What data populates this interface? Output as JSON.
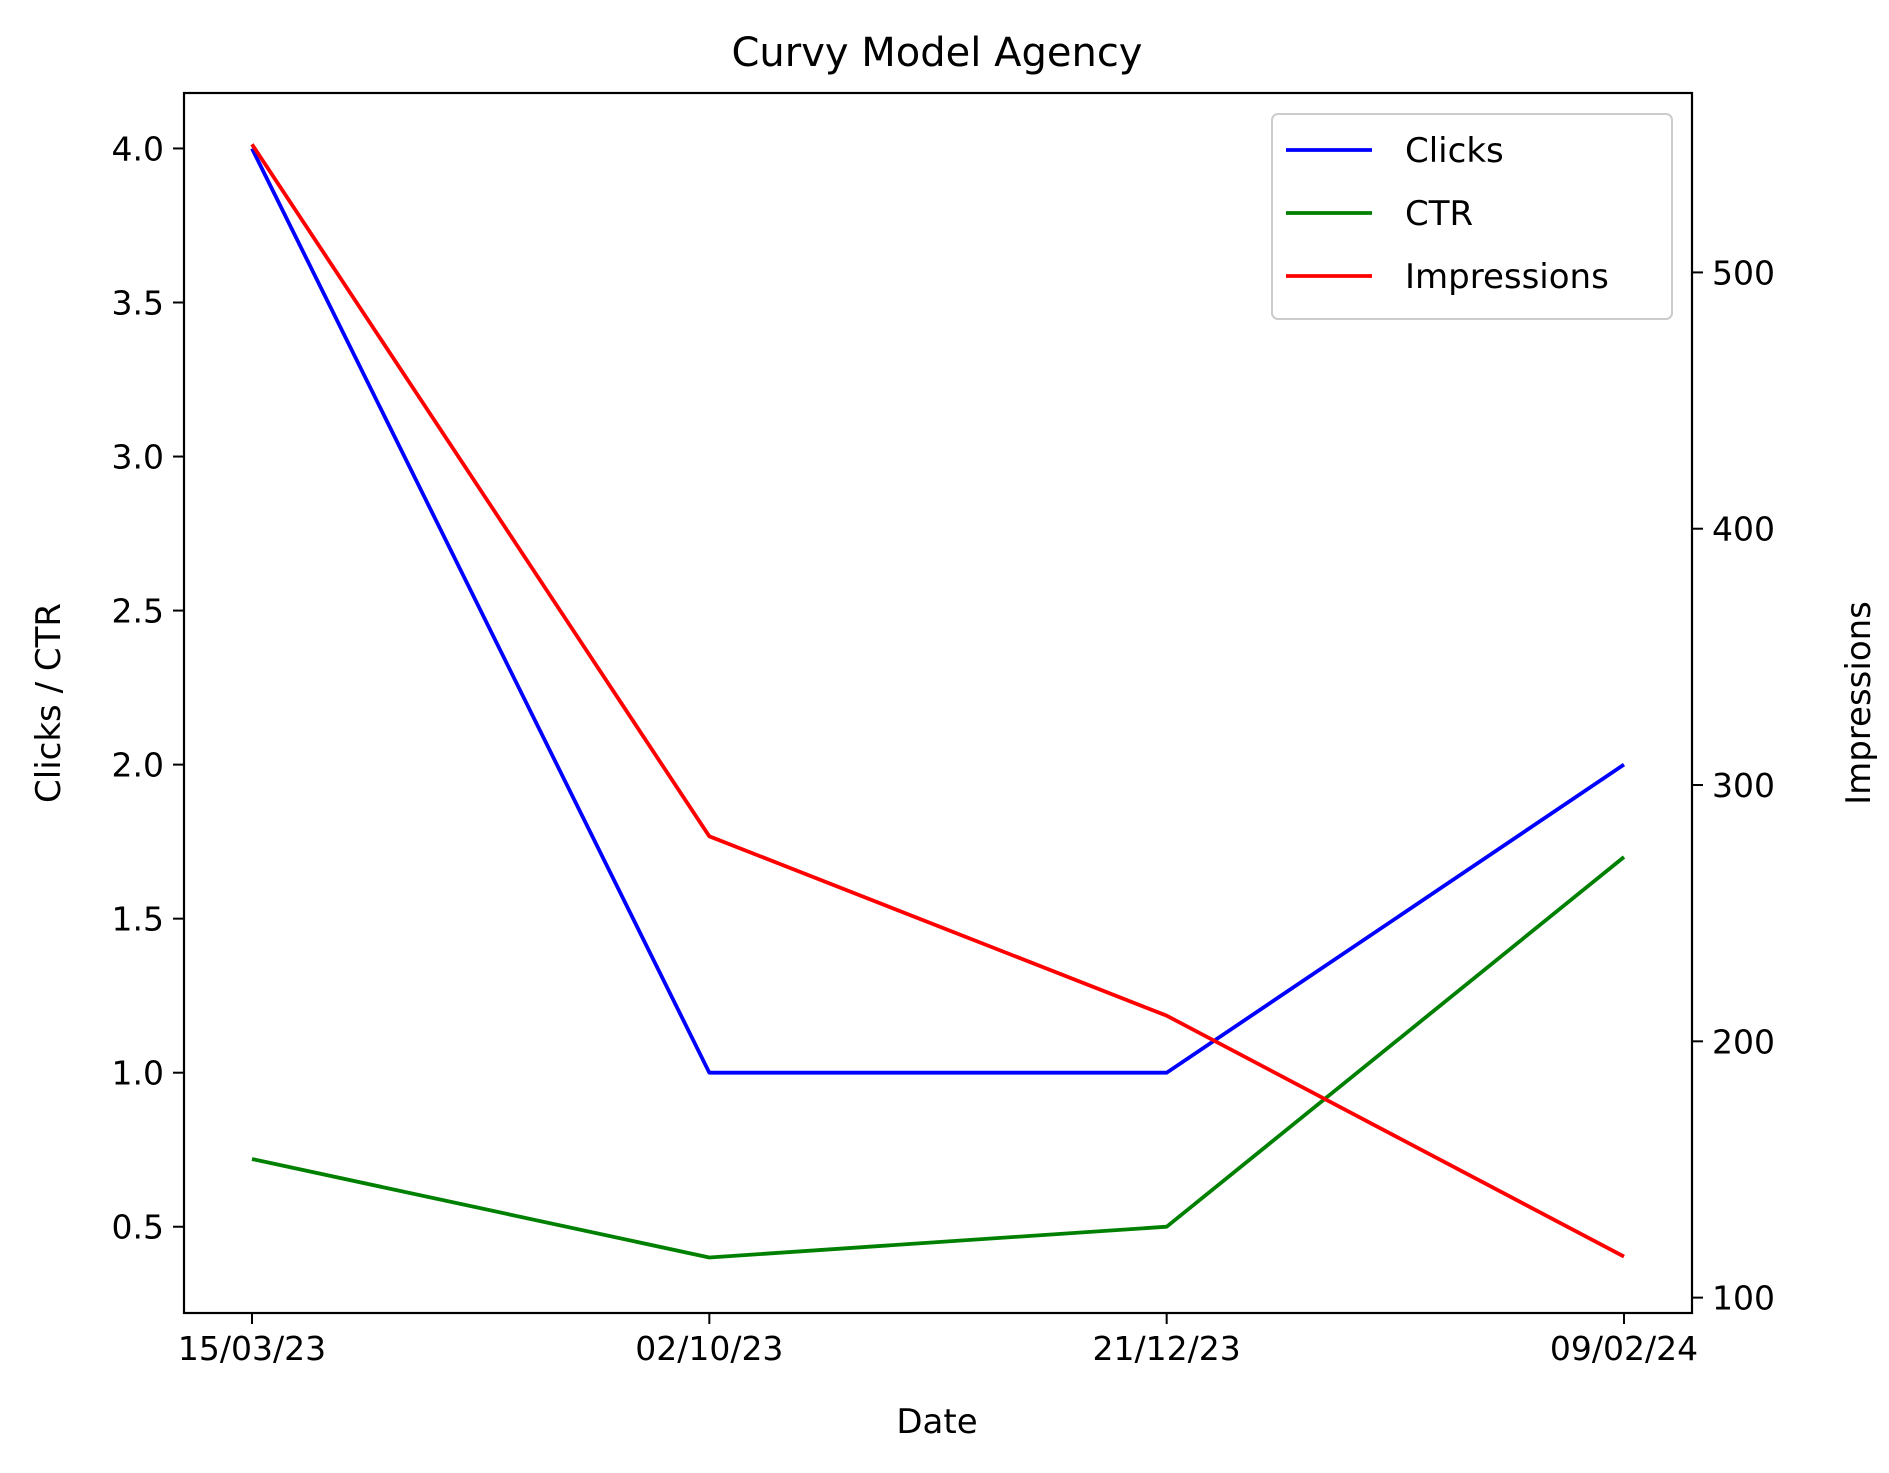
{
  "chart_data": {
    "type": "line",
    "title": "Curvy Model Agency",
    "xlabel": "Date",
    "ylabel": "Clicks / CTR",
    "y2label": "Impressions",
    "categories": [
      "15/03/23",
      "02/10/23",
      "21/12/23",
      "09/02/24"
    ],
    "ylim": [
      0.22,
      4.18
    ],
    "y2lim": [
      94,
      570
    ],
    "yticks": [
      "0.5",
      "1.0",
      "1.5",
      "2.0",
      "2.5",
      "3.0",
      "3.5",
      "4.0"
    ],
    "y2ticks": [
      "100",
      "200",
      "300",
      "400",
      "500"
    ],
    "series": [
      {
        "name": "Clicks",
        "axis": "left",
        "color": "#0000ff",
        "values": [
          4.0,
          1.0,
          1.0,
          2.0
        ]
      },
      {
        "name": "CTR",
        "axis": "left",
        "color": "#008000",
        "values": [
          0.72,
          0.4,
          0.5,
          1.7
        ]
      },
      {
        "name": "Impressions",
        "axis": "right",
        "color": "#ff0000",
        "values": [
          550,
          280,
          210,
          116
        ]
      }
    ],
    "legend_position": "top-right",
    "grid": false
  }
}
